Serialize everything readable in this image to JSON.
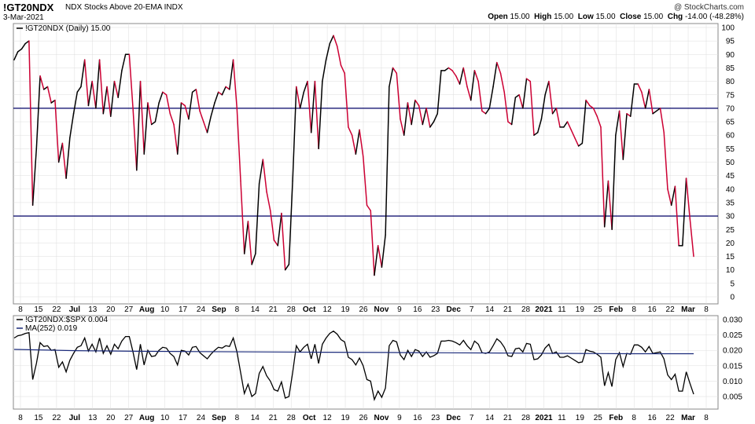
{
  "header": {
    "symbol": "!GT20NDX",
    "description": "NDX Stocks Above 20-EMA  INDX",
    "date": "3-Mar-2021",
    "copyright": "@ StockCharts.com",
    "ohlc": {
      "open_label": "Open",
      "open": "15.00",
      "high_label": "High",
      "high": "15.00",
      "low_label": "Low",
      "low": "15.00",
      "close_label": "Close",
      "close": "15.00",
      "chg_label": "Chg",
      "chg": "-14.00 (-48.28%)"
    }
  },
  "colors": {
    "up": "#000000",
    "down": "#cc0033",
    "line_levels": "#000066",
    "ma": "#1a2a7a",
    "grid": "#dddddd"
  },
  "x_axis_labels": [
    "8",
    "15",
    "22",
    "Jul",
    "13",
    "20",
    "27",
    "Aug",
    "10",
    "17",
    "24",
    "Sep",
    "8",
    "14",
    "21",
    "28",
    "Oct",
    "12",
    "19",
    "26",
    "Nov",
    "9",
    "16",
    "23",
    "Dec",
    "7",
    "14",
    "21",
    "28",
    "2021",
    "11",
    "19",
    "25",
    "Feb",
    "8",
    "16",
    "22",
    "Mar",
    "8"
  ],
  "chart_data": [
    {
      "type": "line",
      "legend": "!GT20NDX (Daily) 15.00",
      "ylim": [
        0,
        100
      ],
      "y_ticks": [
        0,
        5,
        10,
        15,
        20,
        25,
        30,
        35,
        40,
        45,
        50,
        55,
        60,
        65,
        70,
        75,
        80,
        85,
        90,
        95,
        100
      ],
      "levels": [
        30,
        70
      ],
      "values": [
        88,
        91,
        92,
        94,
        95,
        34,
        55,
        82,
        77,
        78,
        72,
        73,
        50,
        57,
        44,
        59,
        68,
        76,
        78,
        88,
        71,
        80,
        70,
        88,
        68,
        78,
        67,
        80,
        74,
        84,
        90,
        90,
        70,
        47,
        80,
        53,
        72,
        64,
        65,
        72,
        76,
        75,
        68,
        64,
        53,
        72,
        71,
        66,
        76,
        77,
        69,
        65,
        61,
        67,
        72,
        76,
        75,
        78,
        77,
        88,
        70,
        43,
        16,
        28,
        12,
        16,
        42,
        51,
        39,
        32,
        21,
        19,
        31,
        10,
        12,
        43,
        78,
        70,
        76,
        80,
        61,
        80,
        55,
        80,
        88,
        94,
        97,
        93,
        86,
        83,
        63,
        60,
        53,
        62,
        52,
        34,
        32,
        8,
        19,
        11,
        23,
        78,
        85,
        83,
        66,
        60,
        72,
        64,
        73,
        71,
        64,
        70,
        63,
        65,
        68,
        84,
        84,
        85,
        84,
        82,
        79,
        85,
        78,
        73,
        84,
        80,
        69,
        68,
        70,
        78,
        87,
        83,
        76,
        65,
        64,
        74,
        75,
        70,
        81,
        80,
        60,
        61,
        66,
        75,
        80,
        68,
        70,
        63,
        63,
        65,
        62,
        59,
        56,
        57,
        73,
        71,
        70,
        67,
        63,
        26,
        43,
        25,
        60,
        69,
        51,
        68,
        67,
        79,
        79,
        76,
        70,
        77,
        68,
        69,
        70,
        61,
        40,
        34,
        41,
        19,
        19,
        44,
        29,
        15
      ]
    },
    {
      "type": "line",
      "series": [
        {
          "name": "!GT20NDX:$SPX 0.004"
        },
        {
          "name": "MA(252) 0.019"
        }
      ],
      "ylim": [
        0,
        0.032
      ],
      "y_ticks": [
        "0.005",
        "0.010",
        "0.015",
        "0.020",
        "0.025",
        "0.030"
      ],
      "ma_values": [
        0.0203,
        0.0199,
        0.0197,
        0.0196,
        0.0195,
        0.0194,
        0.0193,
        0.0192,
        0.0191,
        0.019,
        0.0189,
        0.0189
      ]
    }
  ]
}
